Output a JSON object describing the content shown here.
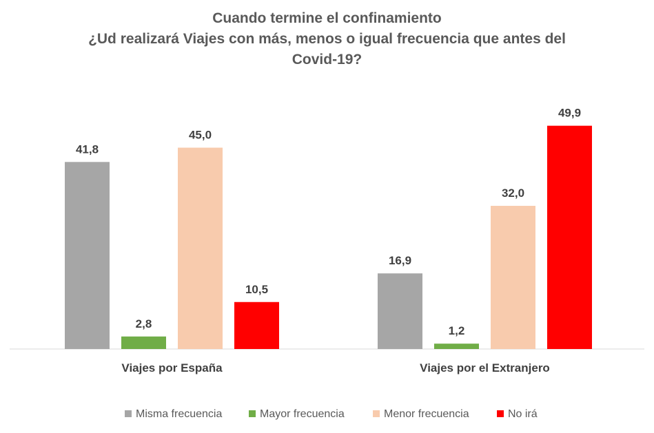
{
  "chart_data": {
    "type": "bar",
    "title_lines": [
      "Cuando termine el confinamiento",
      "¿Ud realizará Viajes con más, menos o igual frecuencia que antes del",
      "Covid-19?"
    ],
    "categories": [
      "Viajes por España",
      "Viajes por el Extranjero"
    ],
    "series": [
      {
        "name": "Misma frecuencia",
        "color": "#a6a6a6",
        "values": [
          41.8,
          16.9
        ],
        "labels": [
          "41,8",
          "16,9"
        ]
      },
      {
        "name": "Mayor frecuencia",
        "color": "#70ad47",
        "values": [
          2.8,
          1.2
        ],
        "labels": [
          "2,8",
          "1,2"
        ]
      },
      {
        "name": "Menor frecuencia",
        "color": "#f8cbad",
        "values": [
          45.0,
          32.0
        ],
        "labels": [
          "45,0",
          "32,0"
        ]
      },
      {
        "name": "No irá",
        "color": "#ff0000",
        "values": [
          10.5,
          49.9
        ],
        "labels": [
          "10,5",
          "49,9"
        ]
      }
    ],
    "ylim": [
      0,
      50
    ],
    "grid": false,
    "legend_position": "bottom",
    "axis_color": "#d9d9d9"
  }
}
